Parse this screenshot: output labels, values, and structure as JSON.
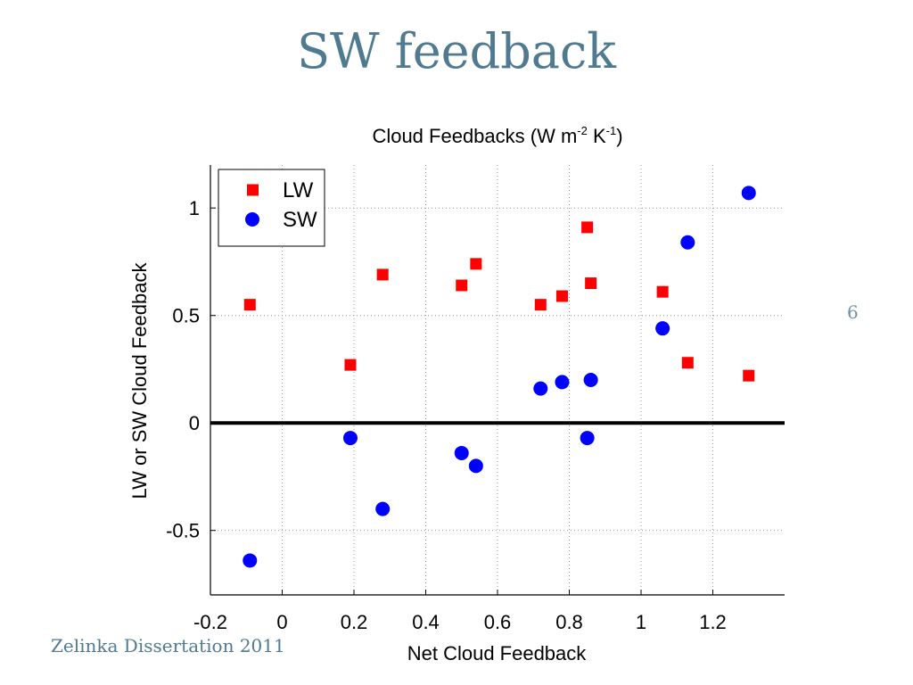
{
  "slide": {
    "title": "SW feedback",
    "footer": "Zelinka Dissertation 2011",
    "slide_number": "6"
  },
  "colors": {
    "lw": "#ff0000",
    "sw": "#0000ff",
    "title": "#4f7a8f"
  },
  "chart_data": {
    "type": "scatter",
    "title": "Cloud Feedbacks (W m",
    "title_parts": [
      "Cloud Feedbacks (W m",
      "-2",
      " K",
      "-1",
      ")"
    ],
    "xlabel": "Net Cloud Feedback",
    "ylabel": "LW or SW Cloud Feedback",
    "xlim": [
      -0.2,
      1.4
    ],
    "ylim": [
      -0.8,
      1.2
    ],
    "xticks": [
      -0.2,
      0,
      0.2,
      0.4,
      0.6,
      0.8,
      1,
      1.2
    ],
    "xtick_labels": [
      "-0.2",
      "0",
      "0.2",
      "0.4",
      "0.6",
      "0.8",
      "1",
      "1.2"
    ],
    "yticks": [
      -0.5,
      0,
      0.5,
      1
    ],
    "ytick_labels": [
      "-0.5",
      "0",
      "0.5",
      "1"
    ],
    "grid": true,
    "zero_line": true,
    "legend": {
      "position": "top-left"
    },
    "series": [
      {
        "name": "LW",
        "marker": "square",
        "color": "#ff0000",
        "points": [
          [
            -0.09,
            0.55
          ],
          [
            0.19,
            0.27
          ],
          [
            0.28,
            0.69
          ],
          [
            0.5,
            0.64
          ],
          [
            0.54,
            0.74
          ],
          [
            0.72,
            0.55
          ],
          [
            0.78,
            0.59
          ],
          [
            0.85,
            0.91
          ],
          [
            0.86,
            0.65
          ],
          [
            1.06,
            0.61
          ],
          [
            1.13,
            0.28
          ],
          [
            1.3,
            0.22
          ]
        ]
      },
      {
        "name": "SW",
        "marker": "circle",
        "color": "#0000ff",
        "points": [
          [
            -0.09,
            -0.64
          ],
          [
            0.19,
            -0.07
          ],
          [
            0.28,
            -0.4
          ],
          [
            0.5,
            -0.14
          ],
          [
            0.54,
            -0.2
          ],
          [
            0.72,
            0.16
          ],
          [
            0.78,
            0.19
          ],
          [
            0.85,
            -0.07
          ],
          [
            0.86,
            0.2
          ],
          [
            1.06,
            0.44
          ],
          [
            1.13,
            0.84
          ],
          [
            1.3,
            1.07
          ]
        ]
      }
    ]
  }
}
